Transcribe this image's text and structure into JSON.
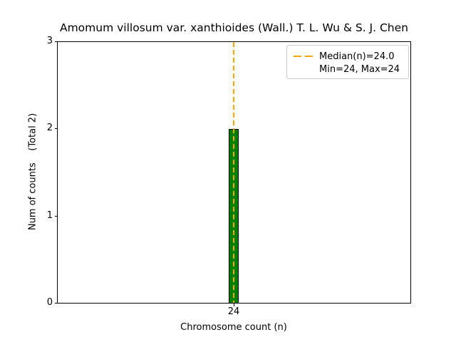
{
  "chart_data": {
    "type": "bar",
    "title": "Amomum villosum var. xanthioides (Wall.) T. L. Wu & S. J. Chen",
    "xlabel": "Chromosome count (n)",
    "ylabel": "Num of counts    (Total 2)",
    "categories": [
      24
    ],
    "values": [
      2
    ],
    "total_counts": 2,
    "x_ticks": [
      "24"
    ],
    "y_ticks": [
      "0",
      "1",
      "2",
      "3"
    ],
    "ylim": [
      0,
      3
    ],
    "grid": false,
    "median": 24.0,
    "min": 24,
    "max": 24,
    "colors": {
      "bar_fill": "#008000",
      "bar_edge": "#000000",
      "median_line": "#FFA500",
      "legend_border": "#cccccc",
      "text": "#000000",
      "background": "#ffffff"
    },
    "legend": {
      "position": "upper-right",
      "entries": [
        {
          "label": "Median(n)=24.0",
          "handle": "orange-dashed-line"
        },
        {
          "label": "Min=24, Max=24",
          "handle": "none"
        }
      ]
    }
  }
}
